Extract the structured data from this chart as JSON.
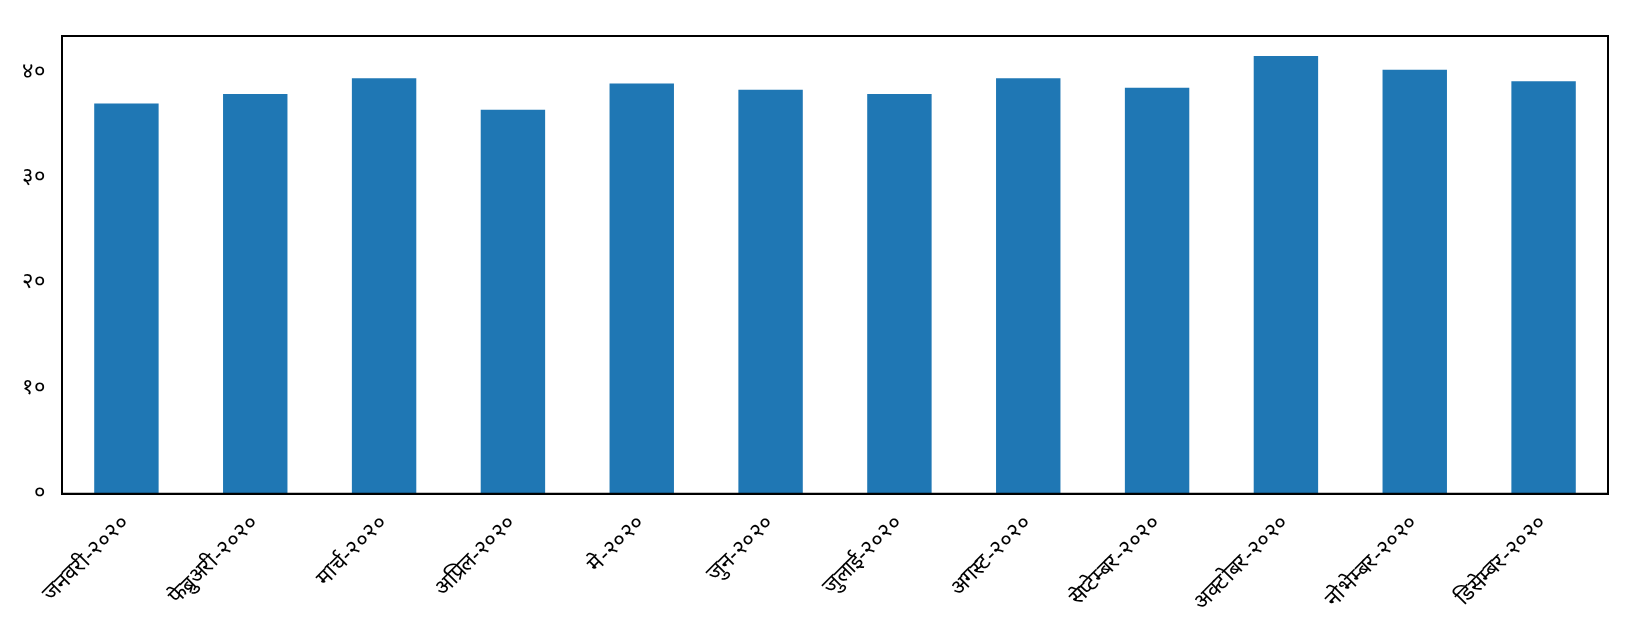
{
  "chart_data": {
    "type": "bar",
    "categories": [
      "जनवरी-२०२०",
      "फेब्रुअरी-२०२०",
      "मार्च-२०२०",
      "अप्रिल-२०२०",
      "मे-२०२०",
      "जुन-२०२०",
      "जुलाई-२०२०",
      "अगस्ट-२०२०",
      "सेप्टेम्बर-२०२०",
      "अक्टोबर-२०२०",
      "नोभेम्बर-२०२०",
      "डिसेम्बर-२०२०"
    ],
    "values": [
      37.0,
      37.9,
      39.4,
      36.4,
      38.9,
      38.3,
      37.9,
      39.4,
      38.5,
      41.5,
      40.2,
      39.1
    ],
    "color": "#1f77b4",
    "ylim": [
      0,
      43.4
    ],
    "yticks": [
      {
        "value": 0,
        "label": "०"
      },
      {
        "value": 10,
        "label": "१०"
      },
      {
        "value": 20,
        "label": "२०"
      },
      {
        "value": 30,
        "label": "३०"
      },
      {
        "value": 40,
        "label": "४०"
      }
    ],
    "grid": false,
    "legend": false
  }
}
